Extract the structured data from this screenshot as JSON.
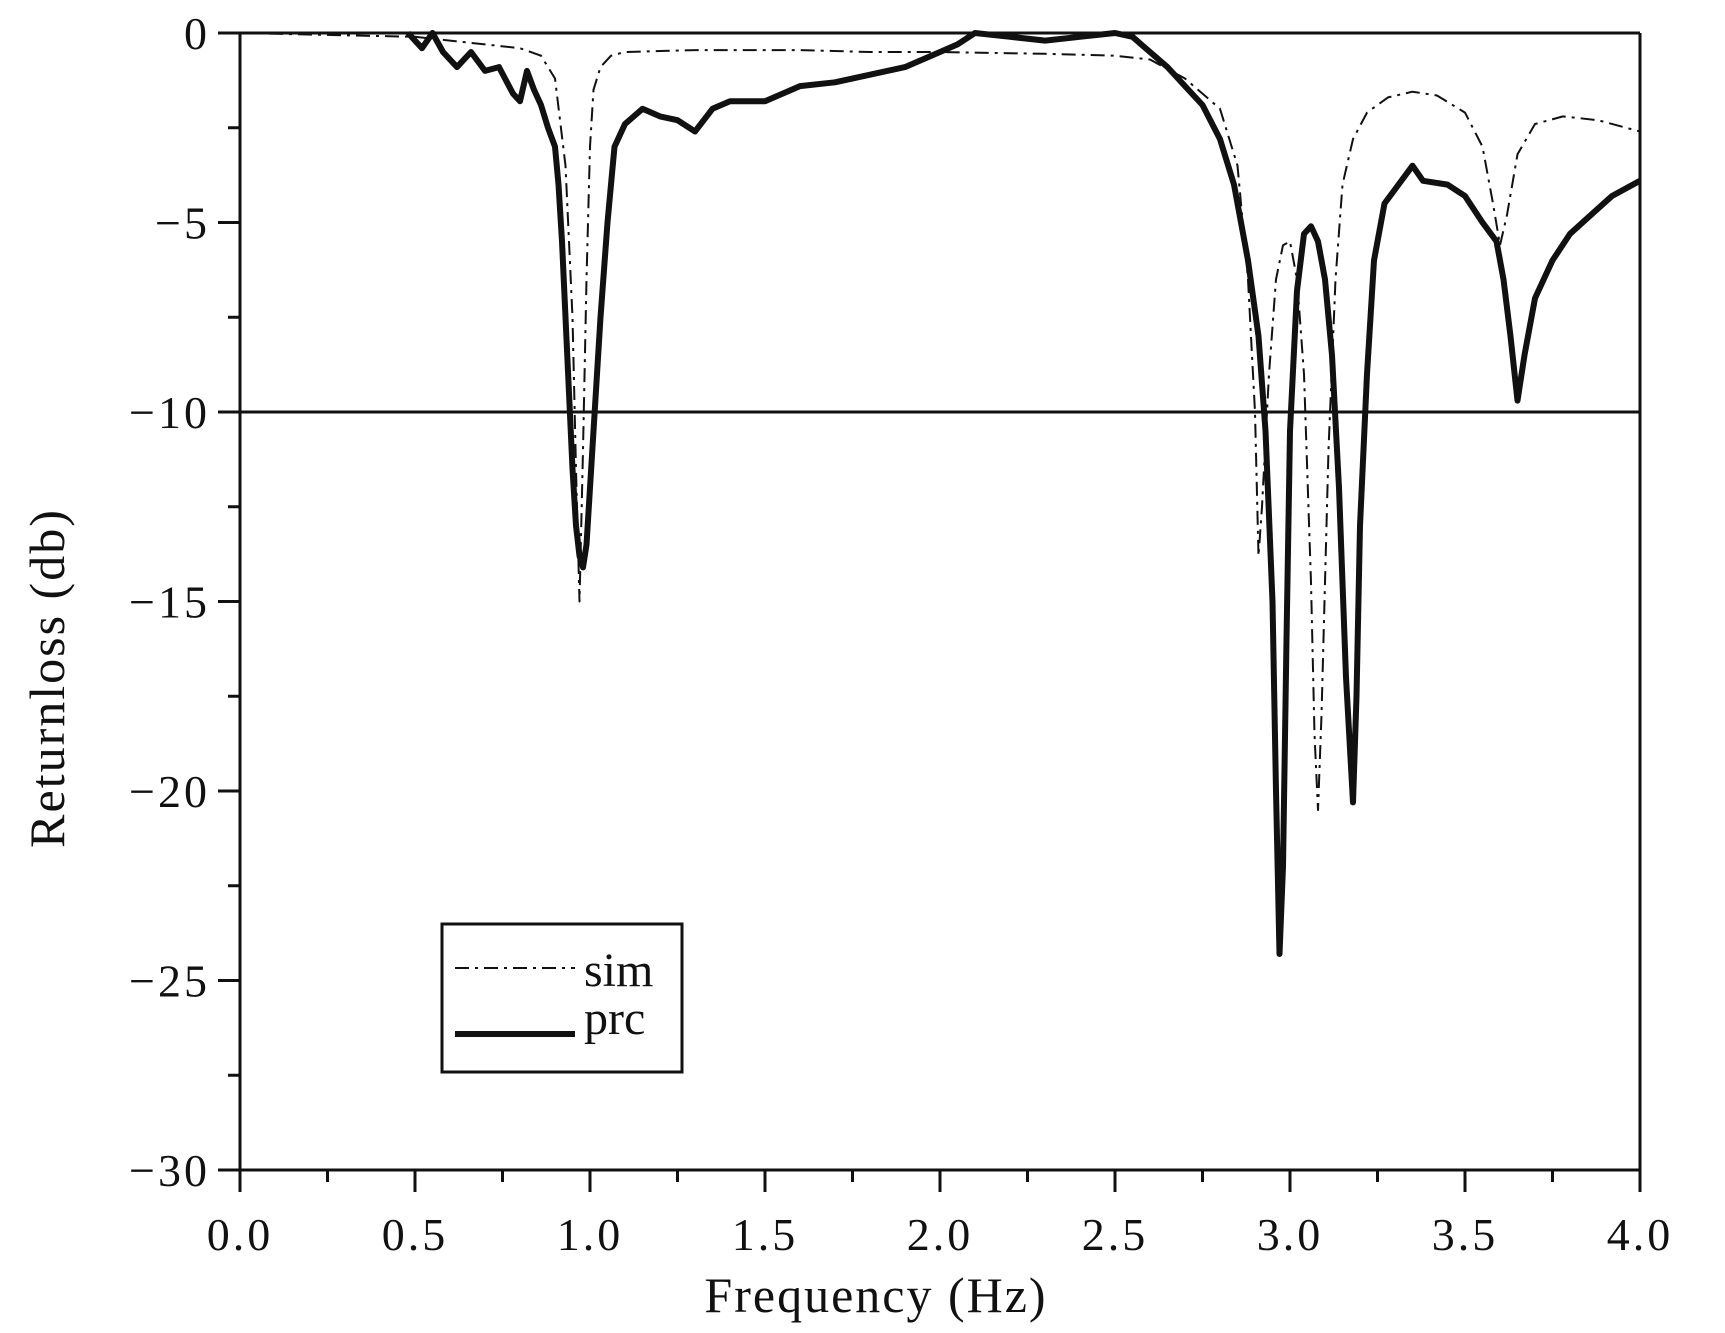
{
  "chart_data": {
    "type": "line",
    "title": "",
    "xlabel": "Frequency (Hz)",
    "ylabel": "Returnloss (db)",
    "xlim": [
      0.0,
      4.0
    ],
    "ylim": [
      -30,
      0
    ],
    "x_ticks": [
      "0.0",
      "0.5",
      "1.0",
      "1.5",
      "2.0",
      "2.5",
      "3.0",
      "3.5",
      "4.0"
    ],
    "x_tick_values": [
      0.0,
      0.5,
      1.0,
      1.5,
      2.0,
      2.5,
      3.0,
      3.5,
      4.0
    ],
    "y_ticks": [
      "0",
      "−5",
      "−10",
      "−15",
      "−20",
      "−25",
      "−30"
    ],
    "y_tick_values": [
      0,
      -5,
      -10,
      -15,
      -20,
      -25,
      -30
    ],
    "reference_line_y": -10,
    "grid": false,
    "legend_position": "bottom-left",
    "colors": {
      "line": "#111111",
      "axis": "#111111",
      "background": "#ffffff"
    },
    "series": [
      {
        "name": "sim",
        "style": "dash-dot",
        "points": [
          [
            0.0,
            0.0
          ],
          [
            0.5,
            -0.1
          ],
          [
            0.6,
            -0.2
          ],
          [
            0.7,
            -0.3
          ],
          [
            0.8,
            -0.4
          ],
          [
            0.86,
            -0.6
          ],
          [
            0.9,
            -1.2
          ],
          [
            0.93,
            -3.5
          ],
          [
            0.95,
            -7.5
          ],
          [
            0.96,
            -11.5
          ],
          [
            0.97,
            -15.0
          ],
          [
            0.98,
            -11.0
          ],
          [
            0.99,
            -6.5
          ],
          [
            1.0,
            -3.0
          ],
          [
            1.01,
            -1.5
          ],
          [
            1.03,
            -0.9
          ],
          [
            1.06,
            -0.6
          ],
          [
            1.1,
            -0.5
          ],
          [
            1.3,
            -0.45
          ],
          [
            1.6,
            -0.45
          ],
          [
            1.8,
            -0.5
          ],
          [
            2.0,
            -0.5
          ],
          [
            2.3,
            -0.55
          ],
          [
            2.5,
            -0.6
          ],
          [
            2.6,
            -0.7
          ],
          [
            2.7,
            -1.2
          ],
          [
            2.8,
            -2.0
          ],
          [
            2.85,
            -3.5
          ],
          [
            2.88,
            -6.5
          ],
          [
            2.9,
            -10.0
          ],
          [
            2.91,
            -13.8
          ],
          [
            2.92,
            -12.5
          ],
          [
            2.94,
            -9.0
          ],
          [
            2.96,
            -6.5
          ],
          [
            2.98,
            -5.6
          ],
          [
            3.0,
            -5.5
          ],
          [
            3.02,
            -6.5
          ],
          [
            3.04,
            -9.0
          ],
          [
            3.06,
            -14.5
          ],
          [
            3.07,
            -18.5
          ],
          [
            3.08,
            -20.5
          ],
          [
            3.09,
            -18.0
          ],
          [
            3.11,
            -11.0
          ],
          [
            3.13,
            -6.5
          ],
          [
            3.15,
            -4.0
          ],
          [
            3.18,
            -2.8
          ],
          [
            3.22,
            -2.1
          ],
          [
            3.28,
            -1.7
          ],
          [
            3.35,
            -1.55
          ],
          [
            3.42,
            -1.65
          ],
          [
            3.5,
            -2.1
          ],
          [
            3.55,
            -3.0
          ],
          [
            3.58,
            -4.5
          ],
          [
            3.6,
            -5.6
          ],
          [
            3.62,
            -4.8
          ],
          [
            3.65,
            -3.2
          ],
          [
            3.7,
            -2.4
          ],
          [
            3.78,
            -2.2
          ],
          [
            3.88,
            -2.3
          ],
          [
            4.0,
            -2.6
          ]
        ]
      },
      {
        "name": "prc",
        "style": "solid",
        "points": [
          [
            0.48,
            0.0
          ],
          [
            0.52,
            -0.4
          ],
          [
            0.55,
            0.0
          ],
          [
            0.58,
            -0.5
          ],
          [
            0.62,
            -0.9
          ],
          [
            0.66,
            -0.5
          ],
          [
            0.7,
            -1.0
          ],
          [
            0.74,
            -0.9
          ],
          [
            0.78,
            -1.6
          ],
          [
            0.8,
            -1.8
          ],
          [
            0.82,
            -1.0
          ],
          [
            0.84,
            -1.5
          ],
          [
            0.86,
            -1.9
          ],
          [
            0.88,
            -2.5
          ],
          [
            0.9,
            -3.0
          ],
          [
            0.91,
            -4.0
          ],
          [
            0.92,
            -5.5
          ],
          [
            0.93,
            -7.5
          ],
          [
            0.94,
            -9.5
          ],
          [
            0.95,
            -11.5
          ],
          [
            0.96,
            -13.0
          ],
          [
            0.97,
            -13.8
          ],
          [
            0.98,
            -14.1
          ],
          [
            0.99,
            -13.5
          ],
          [
            1.0,
            -12.0
          ],
          [
            1.01,
            -10.5
          ],
          [
            1.02,
            -9.0
          ],
          [
            1.03,
            -7.5
          ],
          [
            1.05,
            -5.0
          ],
          [
            1.07,
            -3.0
          ],
          [
            1.1,
            -2.4
          ],
          [
            1.15,
            -2.0
          ],
          [
            1.2,
            -2.2
          ],
          [
            1.25,
            -2.3
          ],
          [
            1.3,
            -2.6
          ],
          [
            1.35,
            -2.0
          ],
          [
            1.4,
            -1.8
          ],
          [
            1.5,
            -1.8
          ],
          [
            1.6,
            -1.4
          ],
          [
            1.7,
            -1.3
          ],
          [
            1.8,
            -1.1
          ],
          [
            1.9,
            -0.9
          ],
          [
            2.0,
            -0.5
          ],
          [
            2.05,
            -0.3
          ],
          [
            2.1,
            0.0
          ],
          [
            2.2,
            -0.1
          ],
          [
            2.3,
            -0.2
          ],
          [
            2.4,
            -0.1
          ],
          [
            2.5,
            0.0
          ],
          [
            2.55,
            -0.1
          ],
          [
            2.6,
            -0.5
          ],
          [
            2.65,
            -0.9
          ],
          [
            2.7,
            -1.4
          ],
          [
            2.75,
            -1.9
          ],
          [
            2.8,
            -2.8
          ],
          [
            2.84,
            -4.0
          ],
          [
            2.88,
            -6.0
          ],
          [
            2.91,
            -8.0
          ],
          [
            2.93,
            -10.5
          ],
          [
            2.95,
            -15.0
          ],
          [
            2.96,
            -20.0
          ],
          [
            2.97,
            -24.3
          ],
          [
            2.98,
            -22.0
          ],
          [
            2.99,
            -16.0
          ],
          [
            3.0,
            -10.5
          ],
          [
            3.02,
            -6.8
          ],
          [
            3.04,
            -5.3
          ],
          [
            3.06,
            -5.1
          ],
          [
            3.08,
            -5.5
          ],
          [
            3.1,
            -6.5
          ],
          [
            3.12,
            -8.5
          ],
          [
            3.14,
            -12.0
          ],
          [
            3.16,
            -17.0
          ],
          [
            3.18,
            -20.3
          ],
          [
            3.19,
            -17.5
          ],
          [
            3.2,
            -13.0
          ],
          [
            3.22,
            -9.0
          ],
          [
            3.24,
            -6.0
          ],
          [
            3.27,
            -4.5
          ],
          [
            3.31,
            -4.0
          ],
          [
            3.35,
            -3.5
          ],
          [
            3.38,
            -3.9
          ],
          [
            3.45,
            -4.0
          ],
          [
            3.5,
            -4.3
          ],
          [
            3.55,
            -5.0
          ],
          [
            3.59,
            -5.5
          ],
          [
            3.61,
            -6.5
          ],
          [
            3.63,
            -8.0
          ],
          [
            3.65,
            -9.7
          ],
          [
            3.67,
            -8.5
          ],
          [
            3.7,
            -7.0
          ],
          [
            3.75,
            -6.0
          ],
          [
            3.8,
            -5.3
          ],
          [
            3.86,
            -4.8
          ],
          [
            3.92,
            -4.3
          ],
          [
            4.0,
            -3.9
          ]
        ]
      }
    ]
  }
}
